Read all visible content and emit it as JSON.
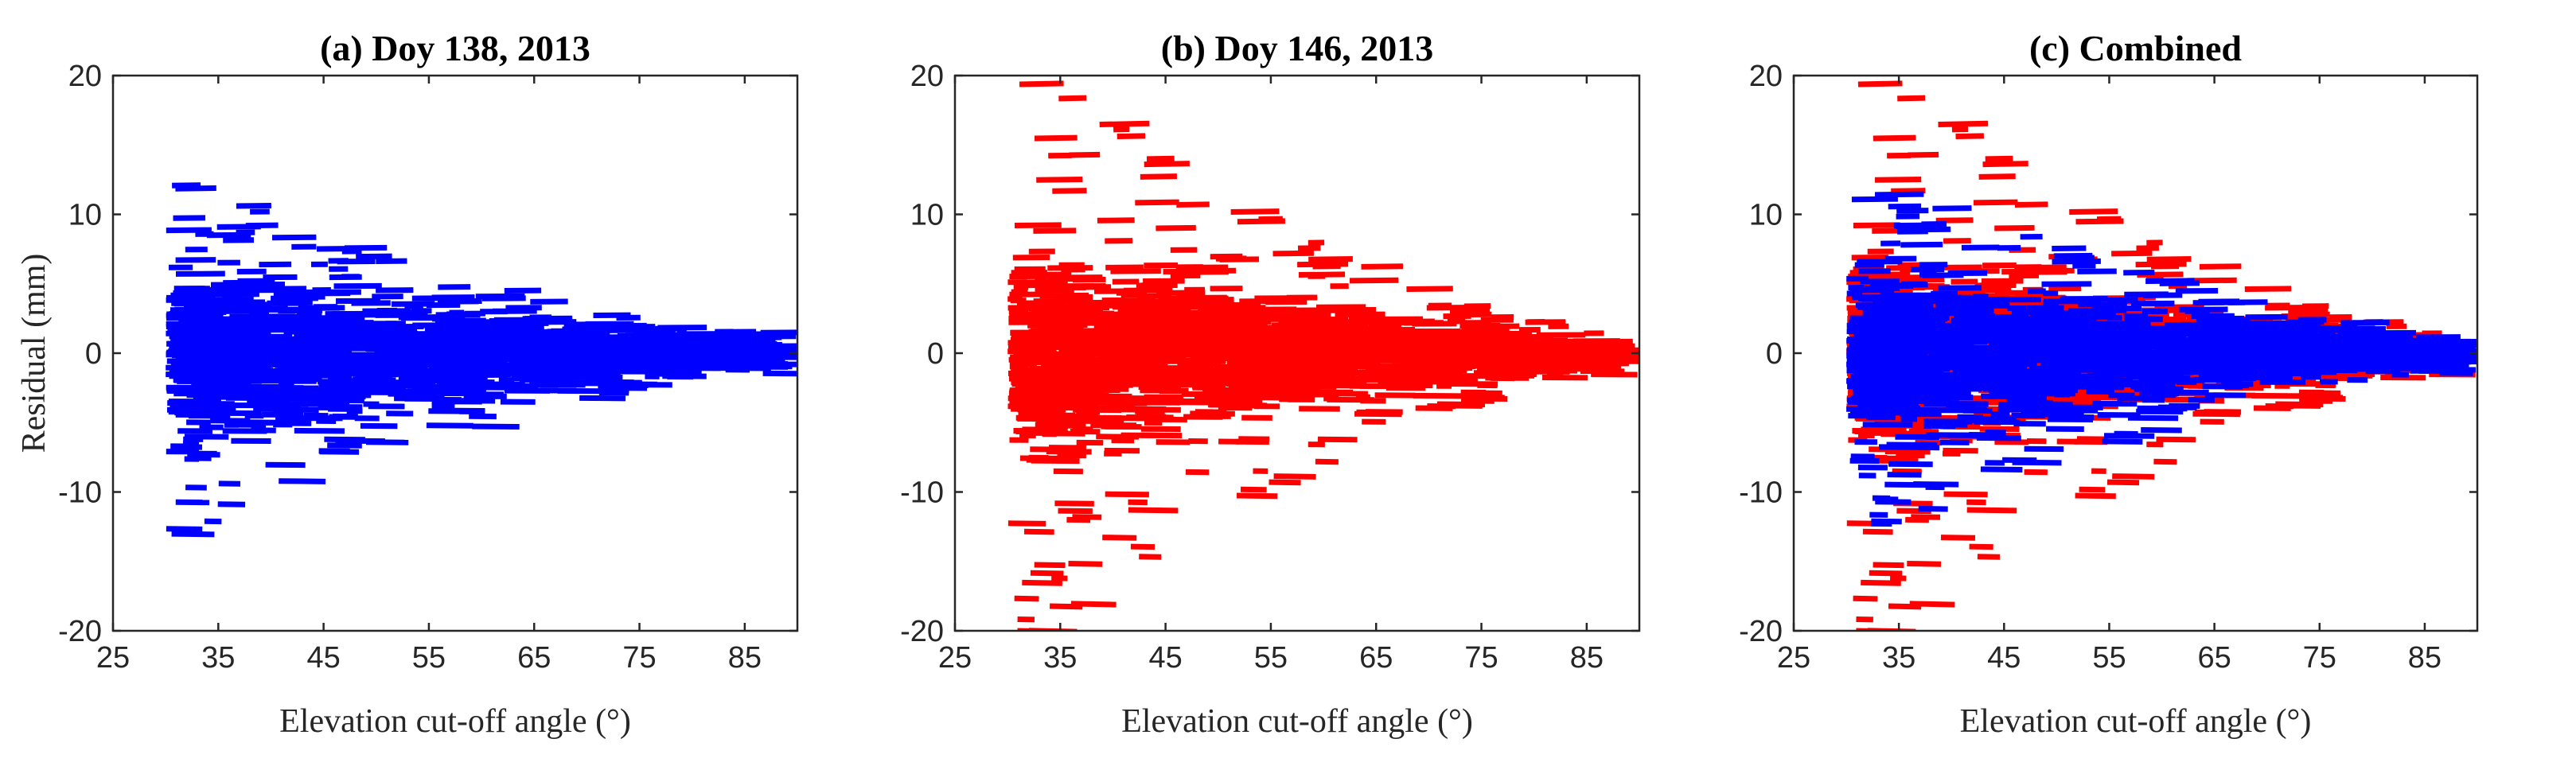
{
  "chart_data": [
    {
      "type": "scatter",
      "title": "(a) Doy 138, 2013",
      "xlabel": "Elevation cut-off angle (°)",
      "ylabel": "Residual (mm)",
      "xlim": [
        25,
        90
      ],
      "ylim": [
        -20,
        20
      ],
      "xticks": [
        25,
        35,
        45,
        55,
        65,
        75,
        85
      ],
      "yticks": [
        -20,
        -10,
        0,
        10,
        20
      ],
      "series": [
        {
          "name": "Doy 138, 2013",
          "color": "#0000ff",
          "spread": 7.5,
          "extreme": 12,
          "x_start": 30,
          "x_end": 87
        }
      ]
    },
    {
      "type": "scatter",
      "title": "(b) Doy 146, 2013",
      "xlabel": "Elevation cut-off angle (°)",
      "ylabel": "",
      "xlim": [
        25,
        90
      ],
      "ylim": [
        -20,
        20
      ],
      "xticks": [
        25,
        35,
        45,
        55,
        65,
        75,
        85
      ],
      "yticks": [
        -20,
        -10,
        0,
        10,
        20
      ],
      "series": [
        {
          "name": "Doy 146, 2013",
          "color": "#ff0000",
          "spread": 9.5,
          "extreme": 20,
          "x_start": 30,
          "x_end": 87
        }
      ]
    },
    {
      "type": "scatter",
      "title": "(c) Combined",
      "xlabel": "Elevation cut-off angle (°)",
      "ylabel": "",
      "xlim": [
        25,
        90
      ],
      "ylim": [
        -20,
        20
      ],
      "xticks": [
        25,
        35,
        45,
        55,
        65,
        75,
        85
      ],
      "yticks": [
        -20,
        -10,
        0,
        10,
        20
      ],
      "series": [
        {
          "name": "Doy 146, 2013",
          "color": "#ff0000",
          "spread": 9.5,
          "extreme": 20,
          "x_start": 30,
          "x_end": 87
        },
        {
          "name": "Doy 138, 2013",
          "color": "#0000ff",
          "spread": 7.5,
          "extreme": 12,
          "x_start": 30,
          "x_end": 87
        }
      ]
    }
  ]
}
